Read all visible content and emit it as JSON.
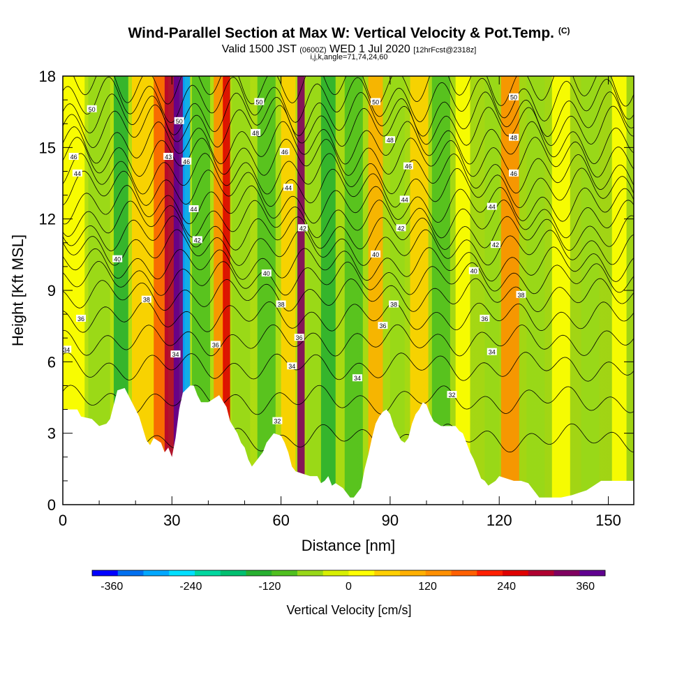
{
  "header": {
    "title": "Wind-Parallel Section at Max W: Vertical Velocity & Pot.Temp.",
    "copyright": "(C)",
    "valid_prefix": "Valid 1500 JST",
    "valid_z": "(0600Z)",
    "valid_date": "WED 1 Jul 2020",
    "fcst": "[12hrFcst@2318z]",
    "indices": "i,j,k,angle=71,74,24,60"
  },
  "chart_data": {
    "type": "heatmap",
    "xlabel": "Distance [nm]",
    "ylabel": "Height [Kft MSL]",
    "xlim": [
      0,
      157
    ],
    "ylim": [
      0,
      18
    ],
    "x_ticks": [
      0,
      30,
      60,
      90,
      120,
      150
    ],
    "y_ticks": [
      0,
      3,
      6,
      9,
      12,
      15,
      18
    ],
    "grid": false,
    "vertical_velocity": {
      "label": "Vertical Velocity [cm/s]",
      "colorbar_range": [
        -390,
        390
      ],
      "colorbar_ticks": [
        -360,
        -240,
        -120,
        0,
        120,
        240,
        360
      ],
      "colors": [
        "#0000ff",
        "#0070f0",
        "#00a8ff",
        "#00e0ff",
        "#00d8a0",
        "#00c070",
        "#28b030",
        "#50c020",
        "#98d818",
        "#d8f000",
        "#ffff00",
        "#ffd000",
        "#ffb000",
        "#ff9000",
        "#ff6000",
        "#ff2000",
        "#e00000",
        "#b00030",
        "#800060",
        "#600090"
      ],
      "columns": [
        {
          "x": 3,
          "w": 6,
          "value": 0
        },
        {
          "x": 10,
          "w": 6,
          "value": -60
        },
        {
          "x": 16,
          "w": 4,
          "value": -130
        },
        {
          "x": 22,
          "w": 6,
          "value": 60
        },
        {
          "x": 27,
          "w": 4,
          "value": 180
        },
        {
          "x": 30,
          "w": 4,
          "value": 300
        },
        {
          "x": 32,
          "w": 3,
          "value": 400
        },
        {
          "x": 34,
          "w": 2,
          "value": -300
        },
        {
          "x": 38,
          "w": 5,
          "value": -90
        },
        {
          "x": 43,
          "w": 3,
          "value": 150
        },
        {
          "x": 45,
          "w": 2,
          "value": 260
        },
        {
          "x": 49,
          "w": 5,
          "value": -60
        },
        {
          "x": 56,
          "w": 5,
          "value": -100
        },
        {
          "x": 62,
          "w": 4,
          "value": 60
        },
        {
          "x": 65.5,
          "w": 2,
          "value": 330
        },
        {
          "x": 69,
          "w": 4,
          "value": -60
        },
        {
          "x": 73,
          "w": 4,
          "value": -120
        },
        {
          "x": 80,
          "w": 5,
          "value": -90
        },
        {
          "x": 86,
          "w": 4,
          "value": 110
        },
        {
          "x": 92,
          "w": 4,
          "value": -60
        },
        {
          "x": 98,
          "w": 5,
          "value": 60
        },
        {
          "x": 104,
          "w": 5,
          "value": -90
        },
        {
          "x": 110,
          "w": 4,
          "value": 30
        },
        {
          "x": 118,
          "w": 4,
          "value": -60
        },
        {
          "x": 123,
          "w": 5,
          "value": 150
        },
        {
          "x": 130,
          "w": 5,
          "value": -60
        },
        {
          "x": 137,
          "w": 5,
          "value": 30
        },
        {
          "x": 145,
          "w": 5,
          "value": -60
        },
        {
          "x": 153,
          "w": 4,
          "value": 30
        }
      ]
    },
    "potential_temperature": {
      "levels": [
        32,
        33,
        34,
        35,
        36,
        37,
        38,
        39,
        40,
        41,
        42,
        43,
        44,
        45,
        46,
        47,
        48,
        49,
        50,
        51
      ],
      "level_heights_kft": [
        2.8,
        4.4,
        5.8,
        6.9,
        7.9,
        8.8,
        9.5,
        10.1,
        10.8,
        11.4,
        12.0,
        12.6,
        13.3,
        13.9,
        14.6,
        15.2,
        15.9,
        16.4,
        17.0,
        17.7
      ],
      "contour_labels": [
        {
          "x": 1,
          "y": 6.5,
          "text": "34"
        },
        {
          "x": 5,
          "y": 7.8,
          "text": "36"
        },
        {
          "x": 23,
          "y": 8.6,
          "text": "38"
        },
        {
          "x": 15,
          "y": 10.3,
          "text": "40"
        },
        {
          "x": 4,
          "y": 13.9,
          "text": "44"
        },
        {
          "x": 3,
          "y": 14.6,
          "text": "46"
        },
        {
          "x": 8,
          "y": 16.6,
          "text": "50"
        },
        {
          "x": 31,
          "y": 6.3,
          "text": "34"
        },
        {
          "x": 42,
          "y": 6.7,
          "text": "36"
        },
        {
          "x": 29,
          "y": 14.6,
          "text": "43"
        },
        {
          "x": 34,
          "y": 14.4,
          "text": "46"
        },
        {
          "x": 32,
          "y": 16.1,
          "text": "50"
        },
        {
          "x": 36,
          "y": 12.4,
          "text": "44"
        },
        {
          "x": 37,
          "y": 11.1,
          "text": "42"
        },
        {
          "x": 53,
          "y": 15.6,
          "text": "48"
        },
        {
          "x": 54,
          "y": 16.9,
          "text": "50"
        },
        {
          "x": 61,
          "y": 14.8,
          "text": "46"
        },
        {
          "x": 62,
          "y": 13.3,
          "text": "44"
        },
        {
          "x": 66,
          "y": 11.6,
          "text": "42"
        },
        {
          "x": 56,
          "y": 9.7,
          "text": "40"
        },
        {
          "x": 60,
          "y": 8.4,
          "text": "38"
        },
        {
          "x": 65,
          "y": 7.0,
          "text": "36"
        },
        {
          "x": 63,
          "y": 5.8,
          "text": "34"
        },
        {
          "x": 59,
          "y": 3.5,
          "text": "32"
        },
        {
          "x": 86,
          "y": 16.9,
          "text": "50"
        },
        {
          "x": 90,
          "y": 15.3,
          "text": "48"
        },
        {
          "x": 95,
          "y": 14.2,
          "text": "46"
        },
        {
          "x": 94,
          "y": 12.8,
          "text": "44"
        },
        {
          "x": 93,
          "y": 11.6,
          "text": "42"
        },
        {
          "x": 86,
          "y": 10.5,
          "text": "40"
        },
        {
          "x": 91,
          "y": 8.4,
          "text": "38"
        },
        {
          "x": 88,
          "y": 7.5,
          "text": "36"
        },
        {
          "x": 81,
          "y": 5.3,
          "text": "34"
        },
        {
          "x": 124,
          "y": 17.1,
          "text": "50"
        },
        {
          "x": 124,
          "y": 15.4,
          "text": "48"
        },
        {
          "x": 124,
          "y": 13.9,
          "text": "46"
        },
        {
          "x": 118,
          "y": 12.5,
          "text": "44"
        },
        {
          "x": 119,
          "y": 10.9,
          "text": "42"
        },
        {
          "x": 113,
          "y": 9.8,
          "text": "40"
        },
        {
          "x": 126,
          "y": 8.8,
          "text": "38"
        },
        {
          "x": 116,
          "y": 7.8,
          "text": "36"
        },
        {
          "x": 118,
          "y": 6.4,
          "text": "34"
        },
        {
          "x": 107,
          "y": 4.6,
          "text": "32"
        }
      ]
    },
    "terrain_kft": [
      [
        0,
        4.0
      ],
      [
        4,
        4.0
      ],
      [
        5,
        3.7
      ],
      [
        8,
        3.6
      ],
      [
        10,
        3.3
      ],
      [
        12,
        3.4
      ],
      [
        13,
        3.6
      ],
      [
        15,
        4.8
      ],
      [
        17,
        4.9
      ],
      [
        19,
        4.3
      ],
      [
        21,
        3.7
      ],
      [
        23,
        2.7
      ],
      [
        24,
        2.5
      ],
      [
        25,
        2.8
      ],
      [
        27,
        2.6
      ],
      [
        28,
        2.2
      ],
      [
        29,
        2.4
      ],
      [
        30,
        2.0
      ],
      [
        31,
        2.8
      ],
      [
        32,
        4.0
      ],
      [
        33,
        4.7
      ],
      [
        35,
        5.0
      ],
      [
        36,
        5.0
      ],
      [
        37,
        4.6
      ],
      [
        38,
        4.3
      ],
      [
        40,
        4.3
      ],
      [
        42,
        4.5
      ],
      [
        43,
        4.6
      ],
      [
        45,
        4.1
      ],
      [
        46,
        3.5
      ],
      [
        48,
        3.0
      ],
      [
        49,
        2.6
      ],
      [
        50,
        2.4
      ],
      [
        51,
        1.9
      ],
      [
        52,
        1.6
      ],
      [
        53,
        1.8
      ],
      [
        55,
        2.2
      ],
      [
        56,
        2.6
      ],
      [
        58,
        3.0
      ],
      [
        60,
        2.9
      ],
      [
        61,
        2.6
      ],
      [
        62,
        2.2
      ],
      [
        63,
        1.6
      ],
      [
        64,
        1.4
      ],
      [
        66,
        1.3
      ],
      [
        68,
        1.2
      ],
      [
        70,
        1.2
      ],
      [
        71,
        0.9
      ],
      [
        72,
        1.0
      ],
      [
        73,
        1.2
      ],
      [
        74,
        0.8
      ],
      [
        75,
        0.9
      ],
      [
        76,
        0.8
      ],
      [
        77,
        0.7
      ],
      [
        78,
        0.5
      ],
      [
        79,
        0.3
      ],
      [
        80,
        0.3
      ],
      [
        81,
        0.5
      ],
      [
        82,
        0.7
      ],
      [
        83,
        1.5
      ],
      [
        84,
        2.1
      ],
      [
        85,
        2.8
      ],
      [
        86,
        3.4
      ],
      [
        87,
        3.7
      ],
      [
        88,
        3.9
      ],
      [
        89,
        4.0
      ],
      [
        90,
        3.8
      ],
      [
        91,
        3.3
      ],
      [
        92,
        3.0
      ],
      [
        93,
        2.7
      ],
      [
        94,
        2.6
      ],
      [
        95,
        2.8
      ],
      [
        96,
        3.4
      ],
      [
        97,
        3.8
      ],
      [
        98,
        4.0
      ],
      [
        99,
        4.3
      ],
      [
        100,
        4.2
      ],
      [
        101,
        3.8
      ],
      [
        102,
        3.5
      ],
      [
        104,
        3.3
      ],
      [
        106,
        3.3
      ],
      [
        108,
        3.3
      ],
      [
        109,
        3.1
      ],
      [
        110,
        3.0
      ],
      [
        111,
        2.6
      ],
      [
        112,
        2.2
      ],
      [
        113,
        1.9
      ],
      [
        114,
        1.5
      ],
      [
        115,
        1.1
      ],
      [
        116,
        1.0
      ],
      [
        117,
        0.8
      ],
      [
        119,
        1.0
      ],
      [
        120,
        1.2
      ],
      [
        122,
        1.1
      ],
      [
        124,
        1.0
      ],
      [
        126,
        1.0
      ],
      [
        128,
        0.9
      ],
      [
        129,
        0.7
      ],
      [
        130,
        0.5
      ],
      [
        131,
        0.3
      ],
      [
        133,
        0.3
      ],
      [
        137,
        0.3
      ],
      [
        140,
        0.4
      ],
      [
        142,
        0.5
      ],
      [
        144,
        0.6
      ],
      [
        146,
        0.8
      ],
      [
        148,
        1.0
      ],
      [
        152,
        1.0
      ],
      [
        157,
        1.0
      ]
    ]
  }
}
